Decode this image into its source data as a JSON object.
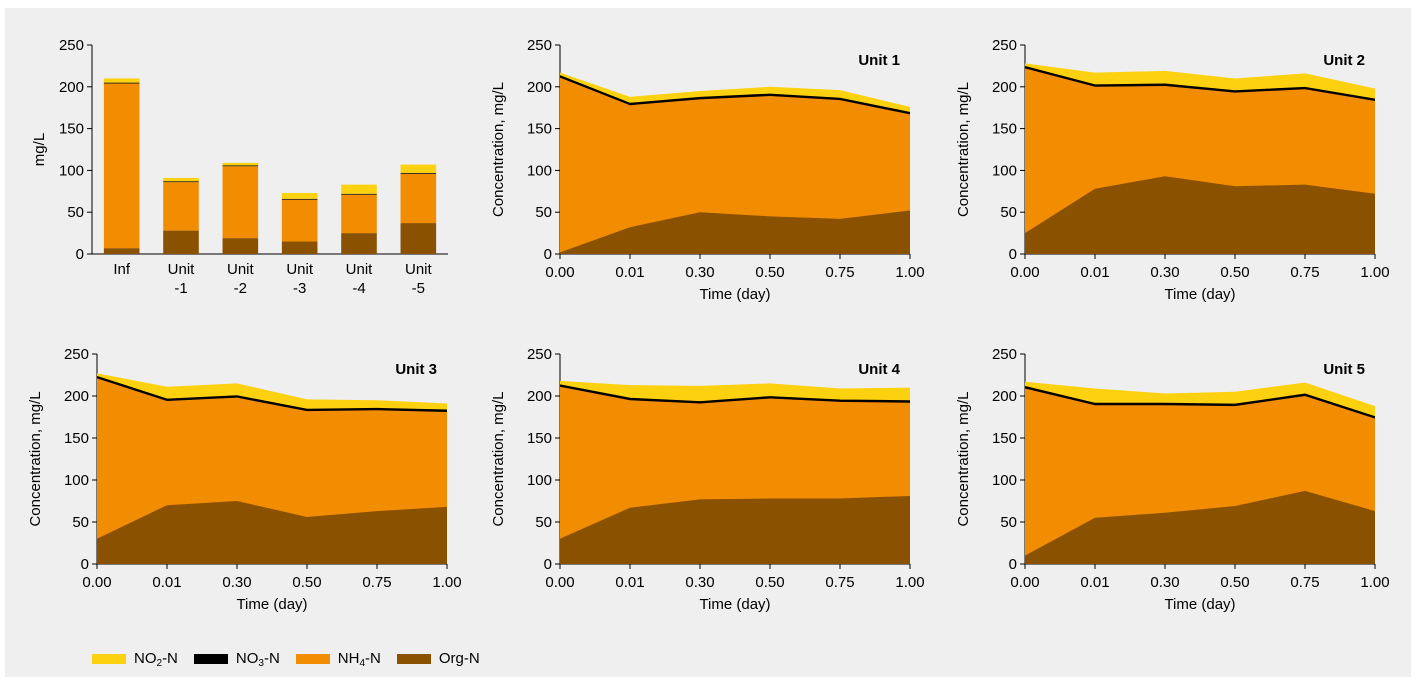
{
  "colors": {
    "NO2": "#fcd10f",
    "NO3": "#000000",
    "NH4": "#f28c00",
    "Org": "#8a5100",
    "axis": "#000000",
    "background": "#efefef"
  },
  "legend": [
    {
      "prefix": "NO",
      "sub": "2",
      "suffix": "-N",
      "color": "#fcd10f"
    },
    {
      "prefix": "NO",
      "sub": "3",
      "suffix": "-N",
      "color": "#000000"
    },
    {
      "prefix": "NH",
      "sub": "4",
      "suffix": "-N",
      "color": "#f28c00"
    },
    {
      "prefix": "Org-N",
      "sub": "",
      "suffix": "",
      "color": "#8a5100"
    }
  ],
  "chart_data": [
    {
      "type": "bar",
      "stacked": true,
      "ylabel": "mg/L",
      "ylim": [
        0,
        250
      ],
      "yticks": [
        0,
        50,
        100,
        150,
        200,
        250
      ],
      "categories": [
        [
          "Inf"
        ],
        [
          "Unit",
          "-1"
        ],
        [
          "Unit",
          "-2"
        ],
        [
          "Unit",
          "-3"
        ],
        [
          "Unit",
          "-4"
        ],
        [
          "Unit",
          "-5"
        ]
      ],
      "series": [
        {
          "key": "Org",
          "values": [
            7,
            28,
            19,
            15,
            25,
            37
          ]
        },
        {
          "key": "NH4",
          "values": [
            197,
            58,
            86,
            50,
            46,
            59
          ]
        },
        {
          "key": "NO3",
          "values": [
            1,
            1,
            1,
            1,
            1,
            1
          ]
        },
        {
          "key": "NO2",
          "values": [
            5,
            4,
            3,
            7,
            11,
            10
          ]
        }
      ]
    },
    {
      "type": "area",
      "stacked": true,
      "title": "Unit 1",
      "xlabel": "Time (day)",
      "ylabel": "Concentration, mg/L",
      "x": [
        "0.00",
        "0.01",
        "0.30",
        "0.50",
        "0.75",
        "1.00"
      ],
      "ylim": [
        0,
        250
      ],
      "yticks": [
        0,
        50,
        100,
        150,
        200,
        250
      ],
      "series": [
        {
          "key": "Org",
          "values": [
            2,
            32,
            50,
            45,
            42,
            52
          ]
        },
        {
          "key": "NH4",
          "values": [
            209,
            146,
            135,
            144,
            142,
            115
          ]
        },
        {
          "key": "NO3",
          "values": [
            2,
            2,
            2,
            2,
            2,
            2
          ]
        },
        {
          "key": "NO2",
          "values": [
            4,
            8,
            8,
            9,
            10,
            7
          ]
        }
      ]
    },
    {
      "type": "area",
      "stacked": true,
      "title": "Unit 2",
      "xlabel": "Time (day)",
      "ylabel": "Concentration, mg/L",
      "x": [
        "0.00",
        "0.01",
        "0.30",
        "0.50",
        "0.75",
        "1.00"
      ],
      "ylim": [
        0,
        250
      ],
      "yticks": [
        0,
        50,
        100,
        150,
        200,
        250
      ],
      "series": [
        {
          "key": "Org",
          "values": [
            25,
            78,
            93,
            81,
            83,
            72
          ]
        },
        {
          "key": "NH4",
          "values": [
            197,
            122,
            108,
            112,
            114,
            111
          ]
        },
        {
          "key": "NO3",
          "values": [
            2,
            2,
            2,
            2,
            2,
            2
          ]
        },
        {
          "key": "NO2",
          "values": [
            4,
            15,
            16,
            15,
            17,
            13
          ]
        }
      ]
    },
    {
      "type": "area",
      "stacked": true,
      "title": "Unit 3",
      "xlabel": "Time (day)",
      "ylabel": "Concentration, mg/L",
      "x": [
        "0.00",
        "0.01",
        "0.30",
        "0.50",
        "0.75",
        "1.00"
      ],
      "ylim": [
        0,
        250
      ],
      "yticks": [
        0,
        50,
        100,
        150,
        200,
        250
      ],
      "series": [
        {
          "key": "Org",
          "values": [
            30,
            70,
            75,
            56,
            63,
            68
          ]
        },
        {
          "key": "NH4",
          "values": [
            191,
            124,
            123,
            126,
            120,
            113
          ]
        },
        {
          "key": "NO3",
          "values": [
            2,
            2,
            2,
            2,
            2,
            2
          ]
        },
        {
          "key": "NO2",
          "values": [
            4,
            15,
            15,
            12,
            10,
            8
          ]
        }
      ]
    },
    {
      "type": "area",
      "stacked": true,
      "title": "Unit 4",
      "xlabel": "Time (day)",
      "ylabel": "Concentration, mg/L",
      "x": [
        "0.00",
        "0.01",
        "0.30",
        "0.50",
        "0.75",
        "1.00"
      ],
      "ylim": [
        0,
        250
      ],
      "yticks": [
        0,
        50,
        100,
        150,
        200,
        250
      ],
      "series": [
        {
          "key": "Org",
          "values": [
            30,
            67,
            77,
            78,
            78,
            81
          ]
        },
        {
          "key": "NH4",
          "values": [
            181,
            128,
            114,
            119,
            115,
            111
          ]
        },
        {
          "key": "NO3",
          "values": [
            2,
            2,
            2,
            2,
            2,
            2
          ]
        },
        {
          "key": "NO2",
          "values": [
            5,
            16,
            19,
            16,
            14,
            16
          ]
        }
      ]
    },
    {
      "type": "area",
      "stacked": true,
      "title": "Unit 5",
      "xlabel": "Time (day)",
      "ylabel": "Concentration, mg/L",
      "x": [
        "0.00",
        "0.01",
        "0.30",
        "0.50",
        "0.75",
        "1.00"
      ],
      "ylim": [
        0,
        250
      ],
      "yticks": [
        0,
        50,
        100,
        150,
        200,
        250
      ],
      "series": [
        {
          "key": "Org",
          "values": [
            10,
            55,
            61,
            69,
            87,
            63
          ]
        },
        {
          "key": "NH4",
          "values": [
            199,
            134,
            128,
            119,
            113,
            110
          ]
        },
        {
          "key": "NO3",
          "values": [
            2,
            2,
            2,
            2,
            2,
            2
          ]
        },
        {
          "key": "NO2",
          "values": [
            6,
            18,
            12,
            15,
            14,
            13
          ]
        }
      ]
    }
  ]
}
